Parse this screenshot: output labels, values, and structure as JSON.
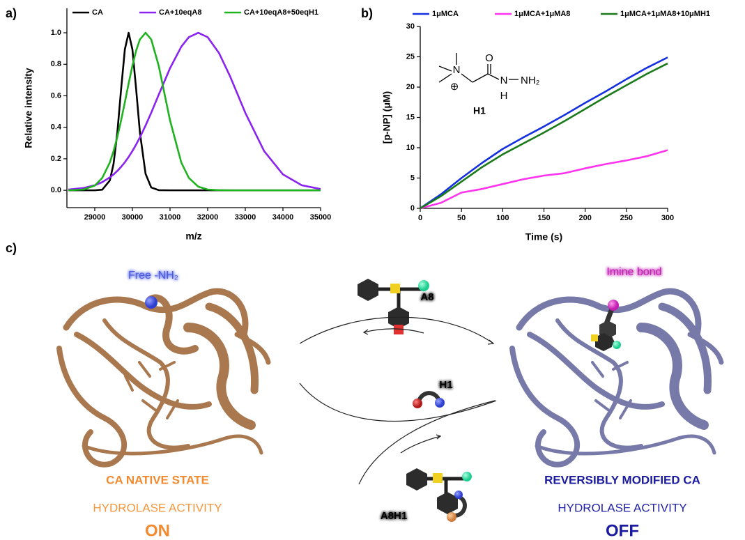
{
  "panel_labels": [
    "a)",
    "b)",
    "c)"
  ],
  "chart_data": [
    {
      "type": "line",
      "xlabel": "m/z",
      "ylabel": "Relative intensity",
      "x": [
        28300,
        28700,
        29000,
        29200,
        29400,
        29500,
        29600,
        29700,
        29800,
        29900,
        30000,
        30100,
        30200,
        30350,
        30500,
        30700,
        31000,
        31300,
        31500,
        31750,
        32000,
        32300,
        32600,
        33000,
        33500,
        34000,
        34500,
        35000
      ],
      "xlim": [
        28260,
        35000
      ],
      "xticks": [
        29000,
        30000,
        31000,
        32000,
        33000,
        34000,
        35000
      ],
      "ylim": [
        -0.11,
        1.155
      ],
      "yticks": [
        {
          "value": 0,
          "label": "0.0"
        },
        0.2,
        0.4,
        0.6,
        0.8,
        {
          "value": 1,
          "label": "1.0"
        }
      ],
      "grid": false,
      "legend": "top",
      "series": [
        {
          "name": "CA",
          "color": "#000000",
          "values": [
            0,
            0,
            0,
            0.004,
            0.062,
            0.169,
            0.367,
            0.641,
            0.895,
            1.0,
            0.895,
            0.641,
            0.367,
            0.105,
            0.018,
            0.001,
            0,
            0,
            0,
            0,
            0,
            0,
            0,
            0,
            0,
            0,
            0,
            0
          ]
        },
        {
          "name": "CA+10eqA8",
          "color": "#8a22f0",
          "values": [
            0.005,
            0.015,
            0.032,
            0.052,
            0.082,
            0.101,
            0.123,
            0.149,
            0.178,
            0.212,
            0.249,
            0.291,
            0.336,
            0.411,
            0.492,
            0.607,
            0.775,
            0.912,
            0.972,
            1.0,
            0.972,
            0.872,
            0.721,
            0.492,
            0.249,
            0.101,
            0.032,
            0.008
          ]
        },
        {
          "name": "CA+10eqA8+50eqH1",
          "color": "#1fb21f",
          "values": [
            0,
            0.005,
            0.03,
            0.079,
            0.176,
            0.249,
            0.339,
            0.444,
            0.559,
            0.678,
            0.79,
            0.887,
            0.958,
            1.0,
            0.958,
            0.79,
            0.444,
            0.176,
            0.079,
            0.023,
            0.005,
            0.001,
            0,
            0,
            0,
            0,
            0,
            0
          ]
        }
      ]
    },
    {
      "type": "line",
      "xlabel": "Time (s)",
      "ylabel": "[p-NP] (μM)",
      "x": [
        0,
        25,
        50,
        75,
        100,
        125,
        150,
        175,
        200,
        225,
        250,
        275,
        300
      ],
      "xlim": [
        0,
        300
      ],
      "xticks": [
        0,
        50,
        100,
        150,
        200,
        250,
        300
      ],
      "ylim": [
        0,
        30
      ],
      "yticks": [
        0,
        5,
        10,
        15,
        20,
        25,
        30
      ],
      "grid": false,
      "legend": "top",
      "series": [
        {
          "name": "1μMCA",
          "color": "#1530e0",
          "values": [
            0,
            2.3,
            5.0,
            7.5,
            9.8,
            11.7,
            13.5,
            15.4,
            17.4,
            19.3,
            21.3,
            23.2,
            24.9
          ]
        },
        {
          "name": "1μMCA+1μMA8",
          "color": "#ff33ee",
          "values": [
            0,
            0.9,
            2.6,
            3.2,
            4.0,
            4.8,
            5.4,
            5.8,
            6.6,
            7.3,
            7.9,
            8.6,
            9.6
          ]
        },
        {
          "name": "1μMCA+1μMA8+10μMH1",
          "color": "#1a7a1a",
          "values": [
            0,
            2.0,
            4.4,
            6.8,
            8.9,
            10.7,
            12.5,
            14.4,
            16.4,
            18.4,
            20.3,
            22.2,
            23.9
          ]
        }
      ],
      "inset": {
        "name": "H1",
        "atoms": [
          "N",
          "⊕",
          "O",
          "N",
          "H",
          "NH₂"
        ]
      }
    }
  ],
  "scheme": {
    "free_amine": "Free -NH₂",
    "reagent": "A8",
    "imine": "Imine bond",
    "hydrazide": "H1",
    "adduct": "A8H1",
    "left": {
      "state": "CA NATIVE STATE",
      "activity": "HYDROLASE ACTIVITY",
      "status": "ON"
    },
    "right": {
      "state": "REVERSIBLY MODIFIED CA",
      "activity": "HYDROLASE ACTIVITY",
      "status": "OFF"
    }
  }
}
